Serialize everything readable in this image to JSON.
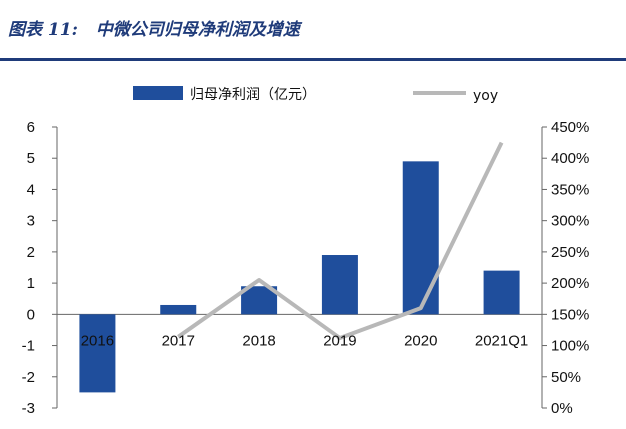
{
  "header": {
    "figure_label": "图表 11:",
    "figure_title": "中微公司归母净利润及增速"
  },
  "colors": {
    "bar": "#1f4e9c",
    "line": "#b8b8b8",
    "header": "#1f3b7a"
  },
  "chart_data": {
    "type": "bar",
    "categories": [
      "2016",
      "2017",
      "2018",
      "2019",
      "2020",
      "2021Q1"
    ],
    "series": [
      {
        "name": "归母净利润（亿元）",
        "type": "bar",
        "axis": "left",
        "values": [
          -2.5,
          0.3,
          0.9,
          1.9,
          4.9,
          1.4
        ]
      },
      {
        "name": "yoy",
        "type": "line",
        "axis": "right",
        "values": [
          null,
          114,
          205,
          112,
          160,
          425
        ]
      }
    ],
    "y_left": {
      "min": -3,
      "max": 6,
      "ticks": [
        "6",
        "5",
        "4",
        "3",
        "2",
        "1",
        "0",
        "-1",
        "-2",
        "-3"
      ]
    },
    "y_right": {
      "min": 0,
      "max": 450,
      "ticks": [
        "450%",
        "400%",
        "350%",
        "300%",
        "250%",
        "200%",
        "150%",
        "100%",
        "50%",
        "0%"
      ]
    },
    "legend_position": "top",
    "grid": false
  }
}
